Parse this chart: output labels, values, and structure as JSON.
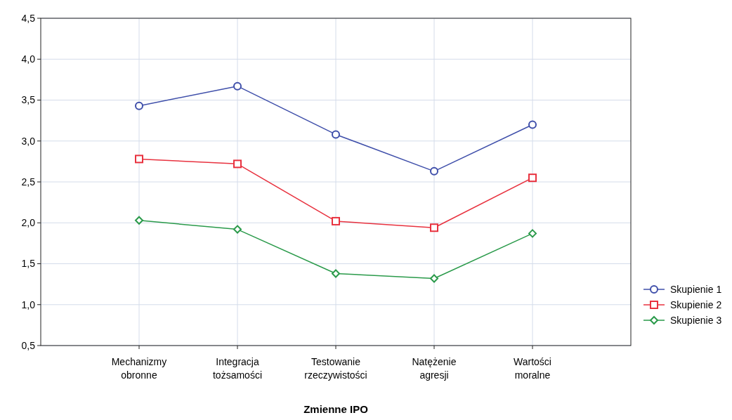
{
  "chart_data": {
    "type": "line",
    "xlabel": "Zmienne IPO",
    "categories": [
      "Mechanizmy\nobronne",
      "Integracja\ntożsamości",
      "Testowanie\nrzeczywistości",
      "Natężenie\nagresji",
      "Wartości\nmoralne"
    ],
    "series": [
      {
        "name": "Skupienie 1",
        "color": "#3f4faa",
        "marker": "circle",
        "values": [
          3.43,
          3.67,
          3.08,
          2.63,
          3.2
        ]
      },
      {
        "name": "Skupienie 2",
        "color": "#e8323f",
        "marker": "square",
        "values": [
          2.78,
          2.72,
          2.02,
          1.94,
          2.55
        ]
      },
      {
        "name": "Skupienie 3",
        "color": "#2a9a4a",
        "marker": "diamond",
        "values": [
          2.03,
          1.92,
          1.38,
          1.32,
          1.87
        ]
      }
    ],
    "ylim": [
      0.5,
      4.5
    ],
    "yticks": [
      {
        "value": 0.5,
        "label": "0,5"
      },
      {
        "value": 1,
        "label": "1,0"
      },
      {
        "value": 1.5,
        "label": "1,5"
      },
      {
        "value": 2,
        "label": "2,0"
      },
      {
        "value": 2.5,
        "label": "2,5"
      },
      {
        "value": 3,
        "label": "3,0"
      },
      {
        "value": 3.5,
        "label": "3,5"
      },
      {
        "value": 4,
        "label": "4,0"
      },
      {
        "value": 4.5,
        "label": "4,5"
      }
    ],
    "grid": true,
    "legend": "bottom right",
    "line_style": "solid"
  }
}
